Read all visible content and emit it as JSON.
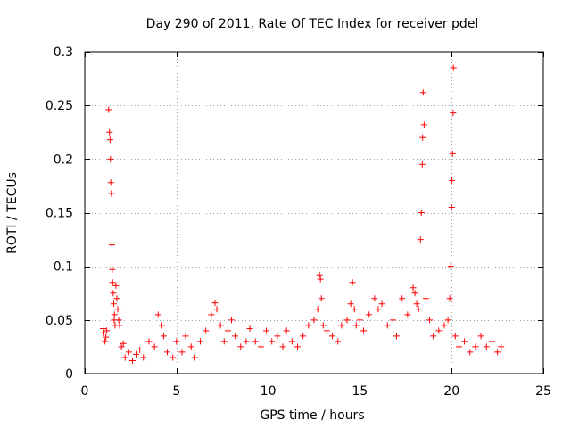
{
  "chart_data": {
    "type": "scatter",
    "title": "Day 290 of 2011, Rate Of TEC Index for receiver pdel",
    "xlabel": "GPS time / hours",
    "ylabel": "ROTI / TECUs",
    "xlim": [
      0,
      25
    ],
    "ylim": [
      0,
      0.3
    ],
    "grid": true,
    "marker": "+",
    "color": "#ff0000",
    "xticks": [
      0,
      5,
      10,
      15,
      20,
      25
    ],
    "xtick_labels": [
      "0",
      "5",
      "10",
      "15",
      "20",
      "25"
    ],
    "yticks": [
      0,
      0.05,
      0.1,
      0.15,
      0.2,
      0.25,
      0.3
    ],
    "ytick_labels": [
      "0",
      "0.05",
      "0.1",
      "0.15",
      "0.2",
      "0.25",
      "0.3"
    ],
    "series": [
      {
        "name": "ROTI",
        "x": [
          1.0,
          1.05,
          1.1,
          1.15,
          1.2,
          1.3,
          1.35,
          1.38,
          1.4,
          1.42,
          1.45,
          1.48,
          1.5,
          1.52,
          1.55,
          1.58,
          1.6,
          1.62,
          1.65,
          1.7,
          1.75,
          1.8,
          1.85,
          1.9,
          2.0,
          2.1,
          2.2,
          2.4,
          2.6,
          2.8,
          3.0,
          3.2,
          3.5,
          3.8,
          4.0,
          4.2,
          4.3,
          4.5,
          4.8,
          5.0,
          5.3,
          5.5,
          5.8,
          6.0,
          6.3,
          6.6,
          6.9,
          7.1,
          7.2,
          7.4,
          7.6,
          7.8,
          8.0,
          8.2,
          8.5,
          8.8,
          9.0,
          9.3,
          9.6,
          9.9,
          10.2,
          10.5,
          10.8,
          11.0,
          11.3,
          11.6,
          11.9,
          12.2,
          12.5,
          12.7,
          12.8,
          12.85,
          12.9,
          13.0,
          13.2,
          13.5,
          13.8,
          14.0,
          14.3,
          14.5,
          14.6,
          14.7,
          14.8,
          15.0,
          15.2,
          15.5,
          15.8,
          16.0,
          16.2,
          16.5,
          16.8,
          17.0,
          17.3,
          17.6,
          17.9,
          18.0,
          18.1,
          18.2,
          18.3,
          18.35,
          18.4,
          18.42,
          18.45,
          18.5,
          18.6,
          18.8,
          19.0,
          19.3,
          19.6,
          19.8,
          19.9,
          19.95,
          20.0,
          20.02,
          20.05,
          20.08,
          20.1,
          20.2,
          20.4,
          20.7,
          21.0,
          21.3,
          21.6,
          21.9,
          22.2,
          22.5,
          22.7
        ],
        "values": [
          0.042,
          0.038,
          0.03,
          0.034,
          0.04,
          0.246,
          0.225,
          0.218,
          0.2,
          0.178,
          0.168,
          0.12,
          0.097,
          0.085,
          0.075,
          0.065,
          0.05,
          0.055,
          0.045,
          0.082,
          0.07,
          0.06,
          0.05,
          0.045,
          0.025,
          0.028,
          0.015,
          0.02,
          0.012,
          0.018,
          0.022,
          0.015,
          0.03,
          0.025,
          0.055,
          0.045,
          0.035,
          0.02,
          0.015,
          0.03,
          0.02,
          0.035,
          0.025,
          0.015,
          0.03,
          0.04,
          0.055,
          0.066,
          0.06,
          0.045,
          0.03,
          0.04,
          0.05,
          0.035,
          0.025,
          0.03,
          0.042,
          0.03,
          0.025,
          0.04,
          0.03,
          0.035,
          0.025,
          0.04,
          0.03,
          0.025,
          0.035,
          0.045,
          0.05,
          0.06,
          0.092,
          0.088,
          0.07,
          0.045,
          0.04,
          0.035,
          0.03,
          0.045,
          0.05,
          0.065,
          0.085,
          0.06,
          0.045,
          0.05,
          0.04,
          0.055,
          0.07,
          0.06,
          0.065,
          0.045,
          0.05,
          0.035,
          0.07,
          0.055,
          0.08,
          0.075,
          0.065,
          0.06,
          0.125,
          0.15,
          0.195,
          0.22,
          0.262,
          0.232,
          0.07,
          0.05,
          0.035,
          0.04,
          0.045,
          0.05,
          0.07,
          0.1,
          0.155,
          0.18,
          0.205,
          0.243,
          0.285,
          0.035,
          0.025,
          0.03,
          0.02,
          0.025,
          0.035,
          0.025,
          0.03,
          0.02,
          0.025
        ]
      }
    ]
  }
}
